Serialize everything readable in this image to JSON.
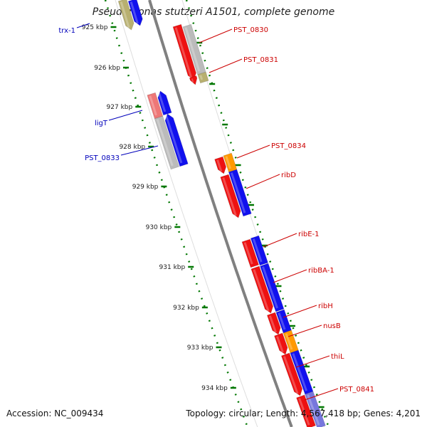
{
  "title": "Pseudomonas stutzeri A1501, complete genome",
  "footer": {
    "accession": "Accession: NC_009434",
    "summary": "Topology: circular; Length: 4,567,418 bp; Genes: 4,201"
  },
  "ticks": [
    "925 kbp",
    "926 kbp",
    "927 kbp",
    "928 kbp",
    "929 kbp",
    "930 kbp",
    "931 kbp",
    "932 kbp",
    "933 kbp",
    "934 kbp"
  ],
  "genes_left": [
    "trx-1",
    "ligT",
    "PST_0833"
  ],
  "genes_right": [
    "PST_0830",
    "PST_0831",
    "PST_0834",
    "ribD",
    "ribE-1",
    "ribBA-1",
    "ribH",
    "nusB",
    "thiL",
    "PST_0841"
  ],
  "colors": {
    "red": "#ee1111",
    "blue": "#1111ee",
    "orange": "#ff9900",
    "gray": "#bbbbbb",
    "olive": "#b8b070",
    "pink": "#ee7777",
    "violet": "#7777dd",
    "label_red": "#cc0000",
    "label_blue": "#0000bb",
    "tick_green": "#007700",
    "backbone": "#808080"
  }
}
